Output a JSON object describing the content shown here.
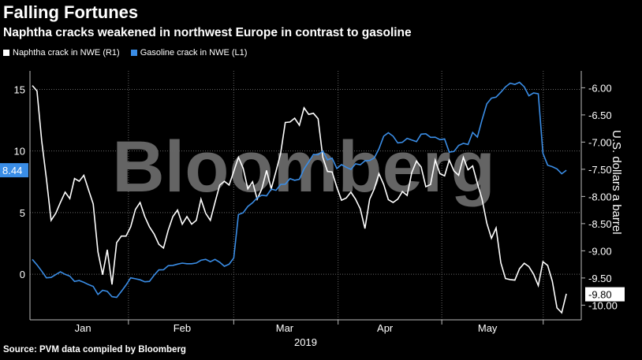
{
  "header": {
    "title": "Falling Fortunes",
    "subtitle": "Naphtha cracks weakened in northwest Europe in contrast to gasoline"
  },
  "legend": [
    {
      "label": "Naphtha crack in NWE (R1)",
      "color": "#ffffff"
    },
    {
      "label": "Gasoline crack in NWE (L1)",
      "color": "#3a8de6"
    }
  ],
  "source": "Source: PVM data compiled by Bloomberg",
  "watermark": "Bloomberg",
  "chart_data": {
    "type": "line",
    "xlabel": "2019",
    "x_ticks": [
      "Jan",
      "Feb",
      "Mar",
      "Apr",
      "May"
    ],
    "ylabel_right": "U.S. dollars a barrel",
    "left_axis": {
      "ticks": [
        "15",
        "10",
        "5",
        "0"
      ],
      "ylim": [
        -3.7,
        16.5
      ]
    },
    "right_axis": {
      "ticks": [
        "-6.00",
        "-6.50",
        "-7.00",
        "-7.50",
        "-8.00",
        "-8.50",
        "-9.00",
        "-9.50",
        "-10.00"
      ],
      "ylim": [
        -10.27,
        -5.69
      ]
    },
    "last_value_labels": {
      "left": "8.44",
      "right": "-9.80"
    },
    "series": [
      {
        "name": "Naphtha crack in NWE (R1)",
        "axis": "right",
        "color": "#ffffff",
        "values": [
          -5.96,
          -6.06,
          -6.98,
          -7.67,
          -8.44,
          -8.31,
          -8.11,
          -7.92,
          -8.04,
          -7.67,
          -7.72,
          -7.61,
          -7.88,
          -8.14,
          -9.02,
          -9.44,
          -8.98,
          -9.62,
          -8.85,
          -8.73,
          -8.73,
          -8.56,
          -8.24,
          -8.11,
          -8.37,
          -8.56,
          -8.69,
          -8.88,
          -8.95,
          -8.62,
          -8.37,
          -8.25,
          -8.51,
          -8.37,
          -8.51,
          -8.44,
          -8.05,
          -8.31,
          -8.44,
          -8.11,
          -7.79,
          -7.72,
          -7.79,
          -7.54,
          -7.28,
          -7.48,
          -7.86,
          -7.73,
          -8.05,
          -7.86,
          -7.52,
          -7.86,
          -7.54,
          -7.21,
          -6.64,
          -6.63,
          -6.56,
          -6.69,
          -6.37,
          -6.49,
          -6.47,
          -6.57,
          -7.28,
          -7.54,
          -7.55,
          -7.83,
          -8.07,
          -8.03,
          -7.92,
          -8.05,
          -8.23,
          -8.59,
          -8.05,
          -7.86,
          -7.58,
          -7.78,
          -8.06,
          -8.11,
          -8.05,
          -7.91,
          -7.98,
          -7.56,
          -7.35,
          -7.46,
          -7.82,
          -7.78,
          -7.33,
          -7.58,
          -7.62,
          -7.33,
          -7.53,
          -7.61,
          -7.28,
          -7.51,
          -7.44,
          -7.76,
          -8.05,
          -8.49,
          -8.77,
          -8.58,
          -9.22,
          -9.51,
          -9.53,
          -9.54,
          -9.33,
          -9.23,
          -9.29,
          -9.43,
          -9.64,
          -9.2,
          -9.27,
          -9.56,
          -10.05,
          -10.14,
          -9.79
        ]
      },
      {
        "name": "Gasoline crack in NWE (L1)",
        "axis": "left",
        "color": "#3a8de6",
        "values": [
          1.2,
          0.76,
          0.25,
          -0.29,
          -0.26,
          -0.03,
          0.19,
          -0.01,
          -0.15,
          -0.59,
          -0.51,
          -0.66,
          -0.84,
          -0.99,
          -1.64,
          -1.3,
          -1.39,
          -1.82,
          -1.88,
          -1.39,
          -0.88,
          -0.29,
          -0.37,
          -0.45,
          -0.61,
          -0.58,
          -0.08,
          0.35,
          0.36,
          0.69,
          0.72,
          0.82,
          0.9,
          0.85,
          0.85,
          0.91,
          1.13,
          1.21,
          1.02,
          1.2,
          0.97,
          0.65,
          0.82,
          1.32,
          4.84,
          4.99,
          5.5,
          5.8,
          6.2,
          6.41,
          6.36,
          6.91,
          6.81,
          7.29,
          7.3,
          7.76,
          7.62,
          7.71,
          8.55,
          9.11,
          9.72,
          9.7,
          9.99,
          9.28,
          9.42,
          8.58,
          8.89,
          8.68,
          8.51,
          8.96,
          8.88,
          9.2,
          9.23,
          9.44,
          10.18,
          11.2,
          11.48,
          11.2,
          10.66,
          10.71,
          11.03,
          10.89,
          10.76,
          11.37,
          11.4,
          11.11,
          11.12,
          10.92,
          10.98,
          9.91,
          9.96,
          10.45,
          10.62,
          10.53,
          11.5,
          11.13,
          12.53,
          13.82,
          14.29,
          14.37,
          14.77,
          15.2,
          15.5,
          15.41,
          15.57,
          15.21,
          14.48,
          14.71,
          14.64,
          9.81,
          8.85,
          8.73,
          8.55,
          8.15,
          8.44
        ]
      }
    ]
  }
}
